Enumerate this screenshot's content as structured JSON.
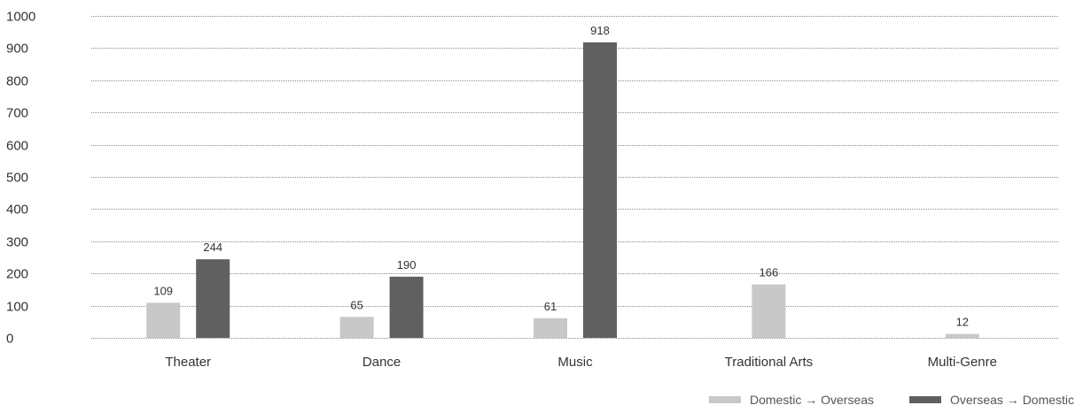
{
  "chart_data": {
    "type": "bar",
    "categories": [
      "Theater",
      "Dance",
      "Music",
      "Traditional Arts",
      "Multi-Genre"
    ],
    "series": [
      {
        "name": "Domestic → Overseas",
        "values": [
          109,
          65,
          61,
          166,
          12
        ],
        "color": "#c8c8c8"
      },
      {
        "name": "Overseas → Domestic",
        "values": [
          244,
          190,
          918,
          null,
          null
        ],
        "color": "#606060"
      }
    ],
    "yticks": [
      "0",
      "100",
      "200",
      "300",
      "400",
      "500",
      "600",
      "700",
      "800",
      "900",
      "1000"
    ],
    "ylim": [
      0,
      1000
    ],
    "grid": true,
    "legend": "bottom-right"
  }
}
